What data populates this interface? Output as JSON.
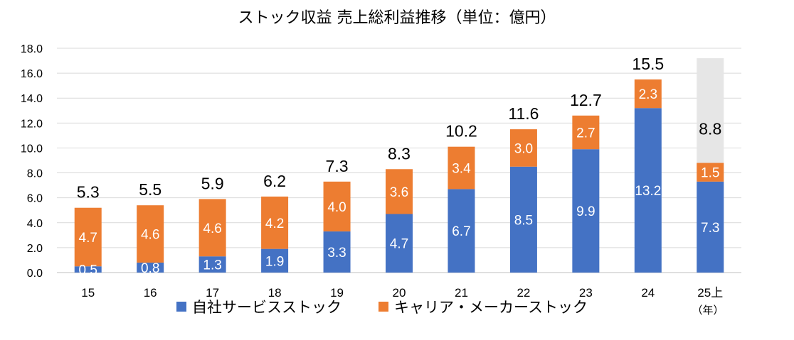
{
  "chart_data": {
    "type": "bar",
    "stacked": true,
    "title": "ストック収益 売上総利益推移（単位：億円）",
    "categories": [
      "15",
      "16",
      "17",
      "18",
      "19",
      "20",
      "21",
      "22",
      "23",
      "24",
      "25上"
    ],
    "x_unit": "（年）",
    "series": [
      {
        "name": "自社サービスストック",
        "color": "#4472C4",
        "values": [
          0.5,
          0.8,
          1.3,
          1.9,
          3.3,
          4.7,
          6.7,
          8.5,
          9.9,
          13.2,
          7.3
        ]
      },
      {
        "name": "キャリア・メーカーストック",
        "color": "#ED7D31",
        "values": [
          4.7,
          4.6,
          4.6,
          4.2,
          4.0,
          3.6,
          3.4,
          3.0,
          2.7,
          2.3,
          1.5
        ]
      }
    ],
    "totals": [
      "5.3",
      "5.5",
      "5.9",
      "6.2",
      "7.3",
      "8.3",
      "10.2",
      "11.6",
      "12.7",
      "15.5",
      "8.8"
    ],
    "forecast_total": 17.2,
    "forecast_color": "#E6E6E6",
    "ylim": [
      0,
      18
    ],
    "yticks": [
      "0.0",
      "2.0",
      "4.0",
      "6.0",
      "8.0",
      "10.0",
      "12.0",
      "14.0",
      "16.0",
      "18.0"
    ],
    "grid": true,
    "legend_position": "bottom"
  }
}
